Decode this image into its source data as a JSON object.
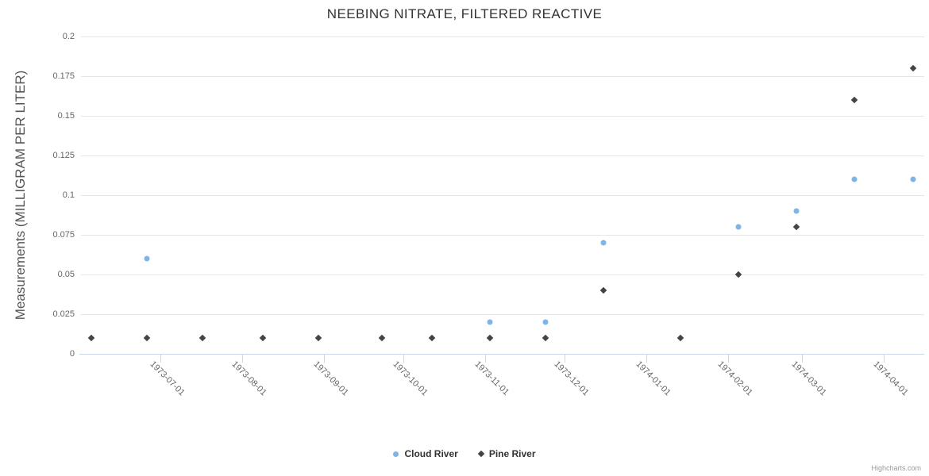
{
  "credits": {
    "label": "Highcharts.com"
  },
  "chart_data": {
    "type": "scatter",
    "title": "NEEBING NITRATE, FILTERED REACTIVE",
    "xlabel": "",
    "ylabel": "Measurements (MILLIGRAM PER LITER)",
    "ylim": [
      0,
      0.2
    ],
    "ytick_values": [
      0,
      0.025,
      0.05,
      0.075,
      0.1,
      0.125,
      0.15,
      0.175,
      0.2
    ],
    "ytick_labels": [
      "0",
      "0.025",
      "0.05",
      "0.075",
      "0.1",
      "0.125",
      "0.15",
      "0.175",
      "0.2"
    ],
    "xtick_labels": [
      "1973-07-01",
      "1973-08-01",
      "1973-09-01",
      "1973-10-01",
      "1973-11-01",
      "1973-12-01",
      "1974-01-01",
      "1974-02-01",
      "1974-03-01",
      "1974-04-01"
    ],
    "x_range": [
      "1973-06-01",
      "1974-04-15"
    ],
    "grid": "horizontal-only",
    "legend_position": "bottom-center",
    "colors": {
      "cloud_river": "#7cb5ec",
      "pine_river": "#434348",
      "gridline": "#e6e6e6",
      "axis": "#ccd6eb",
      "title_text": "#333333",
      "axis_label_text": "#666666",
      "legend_text": "#333333",
      "credits_text": "#999999"
    },
    "series": [
      {
        "name": "Cloud River",
        "marker": "circle",
        "color": "#7cb5ec",
        "points": [
          {
            "date": "1973-06-26",
            "value": 0.06
          },
          {
            "date": "1973-11-03",
            "value": 0.02
          },
          {
            "date": "1973-11-24",
            "value": 0.02
          },
          {
            "date": "1973-12-16",
            "value": 0.07
          },
          {
            "date": "1974-02-05",
            "value": 0.08
          },
          {
            "date": "1974-02-27",
            "value": 0.09
          },
          {
            "date": "1974-03-21",
            "value": 0.11
          },
          {
            "date": "1974-04-12",
            "value": 0.11
          }
        ]
      },
      {
        "name": "Pine River",
        "marker": "diamond",
        "color": "#434348",
        "points": [
          {
            "date": "1973-06-05",
            "value": 0.01
          },
          {
            "date": "1973-06-26",
            "value": 0.01
          },
          {
            "date": "1973-07-17",
            "value": 0.01
          },
          {
            "date": "1973-08-09",
            "value": 0.01
          },
          {
            "date": "1973-08-30",
            "value": 0.01
          },
          {
            "date": "1973-09-23",
            "value": 0.01
          },
          {
            "date": "1973-10-12",
            "value": 0.01
          },
          {
            "date": "1973-11-03",
            "value": 0.01
          },
          {
            "date": "1973-11-24",
            "value": 0.01
          },
          {
            "date": "1973-12-16",
            "value": 0.04
          },
          {
            "date": "1974-01-14",
            "value": 0.01
          },
          {
            "date": "1974-02-05",
            "value": 0.05
          },
          {
            "date": "1974-02-27",
            "value": 0.08
          },
          {
            "date": "1974-03-21",
            "value": 0.16
          },
          {
            "date": "1974-04-12",
            "value": 0.18
          }
        ]
      }
    ]
  }
}
